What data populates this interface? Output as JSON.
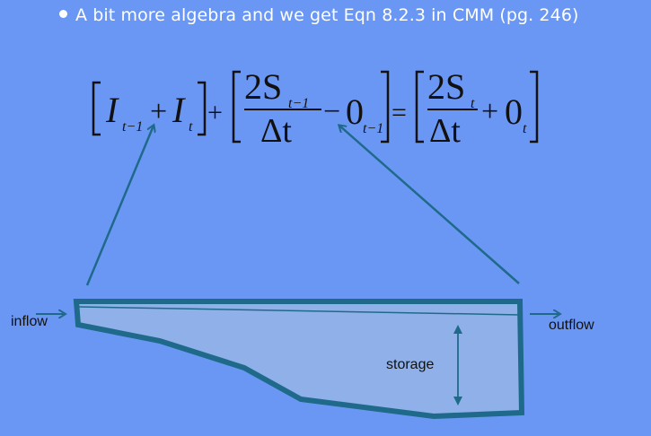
{
  "bullet": {
    "text": "A bit more algebra and we get Eqn 8.2.3 in CMM (pg. 246)"
  },
  "equation": {
    "inflow_term": {
      "I1": "I",
      "sub1": "t−1",
      "plus": "+",
      "I2": "I",
      "sub2": "t"
    },
    "plus_between": "+",
    "storage_term_prev": {
      "num": "2S",
      "num_sub": "t−1",
      "den": "Δt",
      "minus": "−",
      "O": "0",
      "O_sub": "t−1"
    },
    "equals": "=",
    "storage_term_next": {
      "num": "2S",
      "num_sub": "t",
      "den": "Δt",
      "plus": "+",
      "O": "0",
      "O_sub": "t"
    }
  },
  "diagram": {
    "inflow_label": "inflow",
    "outflow_label": "outflow",
    "storage_label": "storage"
  },
  "colors": {
    "background": "#6b97f4",
    "reservoir_outline": "#1f6a8a",
    "reservoir_fill": "#8fb0e8",
    "arrow": "#1f6a8a",
    "text": "#111111"
  }
}
